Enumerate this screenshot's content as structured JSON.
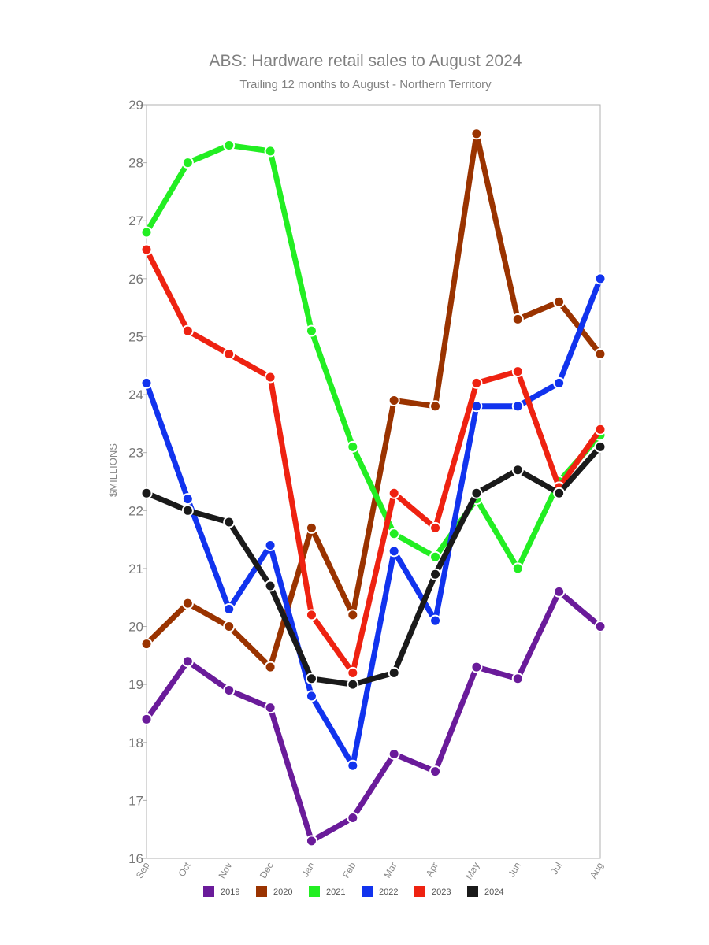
{
  "chart_data": {
    "type": "line",
    "title": "ABS: Hardware retail sales to August 2024",
    "subtitle": "Trailing 12 months to August - Northern Territory",
    "xlabel": "",
    "ylabel": "$MILLIONS",
    "ylim": [
      16,
      29
    ],
    "yticks": [
      16,
      17,
      18,
      19,
      20,
      21,
      22,
      23,
      24,
      25,
      26,
      27,
      28,
      29
    ],
    "categories": [
      "Sep",
      "Oct",
      "Nov",
      "Dec",
      "Jan",
      "Feb",
      "Mar",
      "Apr",
      "May",
      "Jun",
      "Jul",
      "Aug"
    ],
    "grid": false,
    "legend_position": "bottom",
    "series": [
      {
        "name": "2019",
        "color": "#6a1b9a",
        "values": [
          18.4,
          19.4,
          18.9,
          18.6,
          16.3,
          16.7,
          17.8,
          17.5,
          19.3,
          19.1,
          20.6,
          20.0
        ]
      },
      {
        "name": "2020",
        "color": "#9a3300",
        "values": [
          19.7,
          20.4,
          20.0,
          19.3,
          21.7,
          20.2,
          23.9,
          23.8,
          28.5,
          25.3,
          25.6,
          24.7
        ]
      },
      {
        "name": "2021",
        "color": "#22ee22",
        "values": [
          26.8,
          28.0,
          28.3,
          28.2,
          25.1,
          23.1,
          21.6,
          21.2,
          22.2,
          21.0,
          22.5,
          23.3
        ]
      },
      {
        "name": "2022",
        "color": "#1133ee",
        "values": [
          24.2,
          22.2,
          20.3,
          21.4,
          18.8,
          17.6,
          21.3,
          20.1,
          23.8,
          23.8,
          24.2,
          26.0
        ]
      },
      {
        "name": "2023",
        "color": "#ee2211",
        "values": [
          26.5,
          25.1,
          24.7,
          24.3,
          20.2,
          19.2,
          22.3,
          21.7,
          24.2,
          24.4,
          22.4,
          23.4
        ]
      },
      {
        "name": "2024",
        "color": "#1a1a1a",
        "values": [
          22.3,
          22.0,
          21.8,
          20.7,
          19.1,
          19.0,
          19.2,
          20.9,
          22.3,
          22.7,
          22.3,
          23.1
        ]
      }
    ]
  }
}
